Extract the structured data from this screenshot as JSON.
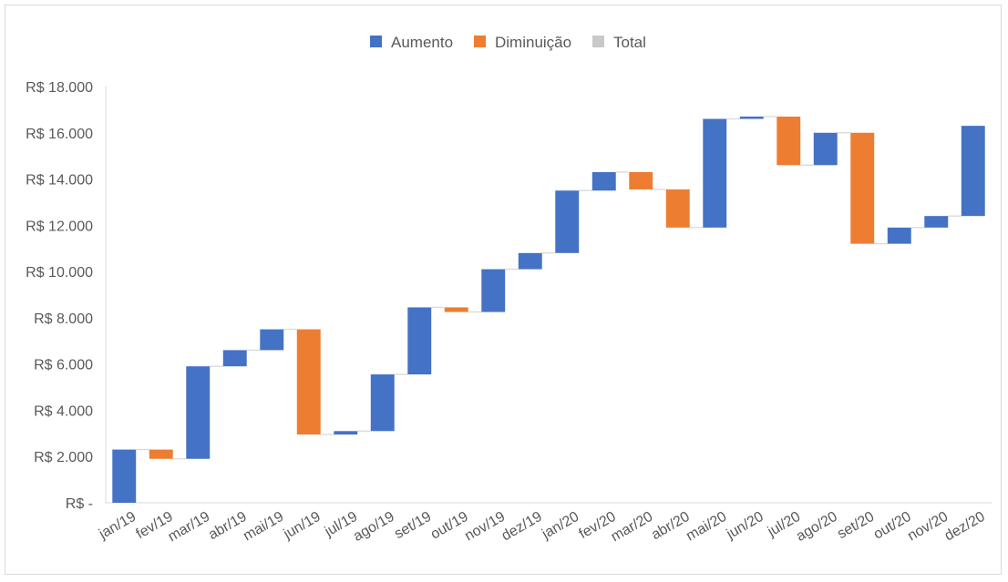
{
  "chart_data": {
    "type": "waterfall",
    "legend": {
      "position": "top",
      "items": [
        {
          "key": "increase",
          "label": "Aumento",
          "color": "#4472c4"
        },
        {
          "key": "decrease",
          "label": "Diminuição",
          "color": "#ed7d31"
        },
        {
          "key": "total",
          "label": "Total",
          "color": "#a5a5a5"
        }
      ]
    },
    "categories": [
      "jan/19",
      "fev/19",
      "mar/19",
      "abr/19",
      "mai/19",
      "jun/19",
      "jul/19",
      "ago/19",
      "set/19",
      "out/19",
      "nov/19",
      "dez/19",
      "jan/20",
      "fev/20",
      "mar/20",
      "abr/20",
      "mai/20",
      "jun/20",
      "jul/20",
      "ago/20",
      "set/20",
      "out/20",
      "nov/20",
      "dez/20"
    ],
    "changes": [
      2300,
      -400,
      4000,
      700,
      900,
      -4550,
      150,
      2450,
      2900,
      -200,
      1850,
      700,
      2700,
      800,
      -750,
      -1650,
      4700,
      100,
      -2100,
      1400,
      -4800,
      700,
      500,
      3900
    ],
    "ylim": [
      0,
      18000
    ],
    "yticks": [
      0,
      2000,
      4000,
      6000,
      8000,
      10000,
      12000,
      14000,
      16000,
      18000
    ],
    "ytick_labels": [
      "R$ -",
      "R$ 2.000",
      "R$ 4.000",
      "R$ 6.000",
      "R$ 8.000",
      "R$ 10.000",
      "R$ 12.000",
      "R$ 14.000",
      "R$ 16.000",
      "R$ 18.000"
    ],
    "grid": false,
    "connector_color": "#d9d9d9"
  }
}
